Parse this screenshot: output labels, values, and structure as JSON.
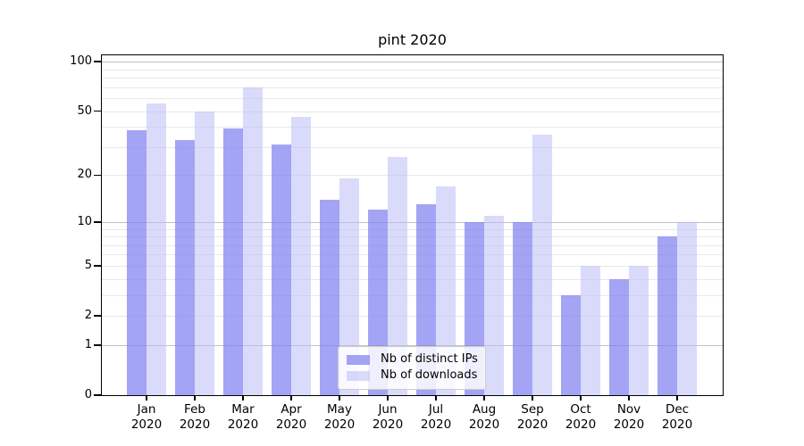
{
  "figure": {
    "title": "pint 2020"
  },
  "colors": {
    "bar_distinct_ips": "rgba(134,134,240,0.75)",
    "bar_downloads": "rgba(187,187,247,0.55)",
    "bar_distinct_ips_hex": "#a4a4f1",
    "bar_downloads_hex": "#d9d9f8",
    "grid_minor": "#e8e8e8",
    "grid_major": "#c0c0c0",
    "spine": "#000000",
    "legend_border": "#cccccc"
  },
  "legend": {
    "items": [
      {
        "label": "Nb of distinct IPs"
      },
      {
        "label": "Nb of downloads"
      }
    ]
  },
  "y_axis": {
    "tick_labels": [
      "100",
      "50",
      "20",
      "10",
      "5",
      "2",
      "1",
      "0"
    ]
  },
  "x_axis": {
    "tick_labels": [
      [
        "Jan",
        "2020"
      ],
      [
        "Feb",
        "2020"
      ],
      [
        "Mar",
        "2020"
      ],
      [
        "Apr",
        "2020"
      ],
      [
        "May",
        "2020"
      ],
      [
        "Jun",
        "2020"
      ],
      [
        "Jul",
        "2020"
      ],
      [
        "Aug",
        "2020"
      ],
      [
        "Sep",
        "2020"
      ],
      [
        "Oct",
        "2020"
      ],
      [
        "Nov",
        "2020"
      ],
      [
        "Dec",
        "2020"
      ]
    ]
  },
  "chart_data": {
    "type": "bar",
    "title": "pint 2020",
    "categories": [
      "Jan 2020",
      "Feb 2020",
      "Mar 2020",
      "Apr 2020",
      "May 2020",
      "Jun 2020",
      "Jul 2020",
      "Aug 2020",
      "Sep 2020",
      "Oct 2020",
      "Nov 2020",
      "Dec 2020"
    ],
    "series": [
      {
        "name": "Nb of distinct IPs",
        "values": [
          38,
          33,
          39,
          31,
          14,
          12,
          13,
          10,
          10,
          3,
          4,
          8
        ]
      },
      {
        "name": "Nb of downloads",
        "values": [
          56,
          50,
          70,
          46,
          19,
          26,
          17,
          11,
          36,
          5,
          5,
          10
        ]
      }
    ],
    "xlabel": "",
    "ylabel": "",
    "yscale": "log1p",
    "ylim": [
      0,
      112
    ],
    "y_ticks": [
      100,
      50,
      20,
      10,
      5,
      2,
      1,
      0
    ],
    "grid_major_values": [
      1,
      10,
      100
    ],
    "grid_minor_values": [
      2,
      3,
      4,
      5,
      6,
      7,
      8,
      9,
      20,
      30,
      40,
      50,
      60,
      70,
      80,
      90
    ],
    "grid": "horizontal",
    "legend_position": "lower center"
  }
}
